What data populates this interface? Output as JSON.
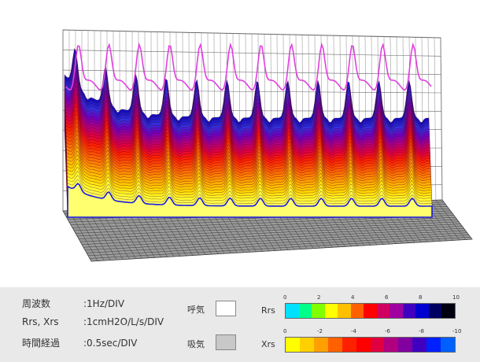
{
  "chart_data": {
    "type": "surface",
    "title": "",
    "slices": 34,
    "cycles": 12,
    "frequency_axis_div": "1Hz/DIV",
    "resistance_axis_div": "1cmH2O/L/s/DIV",
    "time_axis_div": "0.5sec/DIV"
  },
  "legend": {
    "freq": {
      "key": "周波数",
      "value": ":1Hz/DIV"
    },
    "rsxrs": {
      "key": "Rrs, Xrs",
      "value": ":1cmH2O/L/s/DIV"
    },
    "time": {
      "key": "時間経過",
      "value": ":0.5sec/DIV"
    },
    "exhale": "呼気",
    "inhale": "吸気",
    "rrs_label": "Rrs",
    "xrs_label": "Xrs",
    "rrs_ticks": [
      "0",
      "2",
      "4",
      "6",
      "8",
      "10"
    ],
    "xrs_ticks": [
      "0",
      "-2",
      "-4",
      "-6",
      "-8",
      "-10"
    ],
    "exhale_color": "#ffffff",
    "inhale_color": "#c8c8c8",
    "rrs_colors": [
      "#00e0ff",
      "#00ff88",
      "#80ff00",
      "#ffff00",
      "#ffc000",
      "#ff6000",
      "#ff0000",
      "#d00060",
      "#a000a0",
      "#4000c0",
      "#0000d0",
      "#000060",
      "#000010"
    ],
    "xrs_colors": [
      "#ffff00",
      "#ffd000",
      "#ffa000",
      "#ff6000",
      "#ff2000",
      "#ff0000",
      "#e00040",
      "#b00080",
      "#8000a0",
      "#4000c0",
      "#0020ff",
      "#0060ff"
    ]
  }
}
